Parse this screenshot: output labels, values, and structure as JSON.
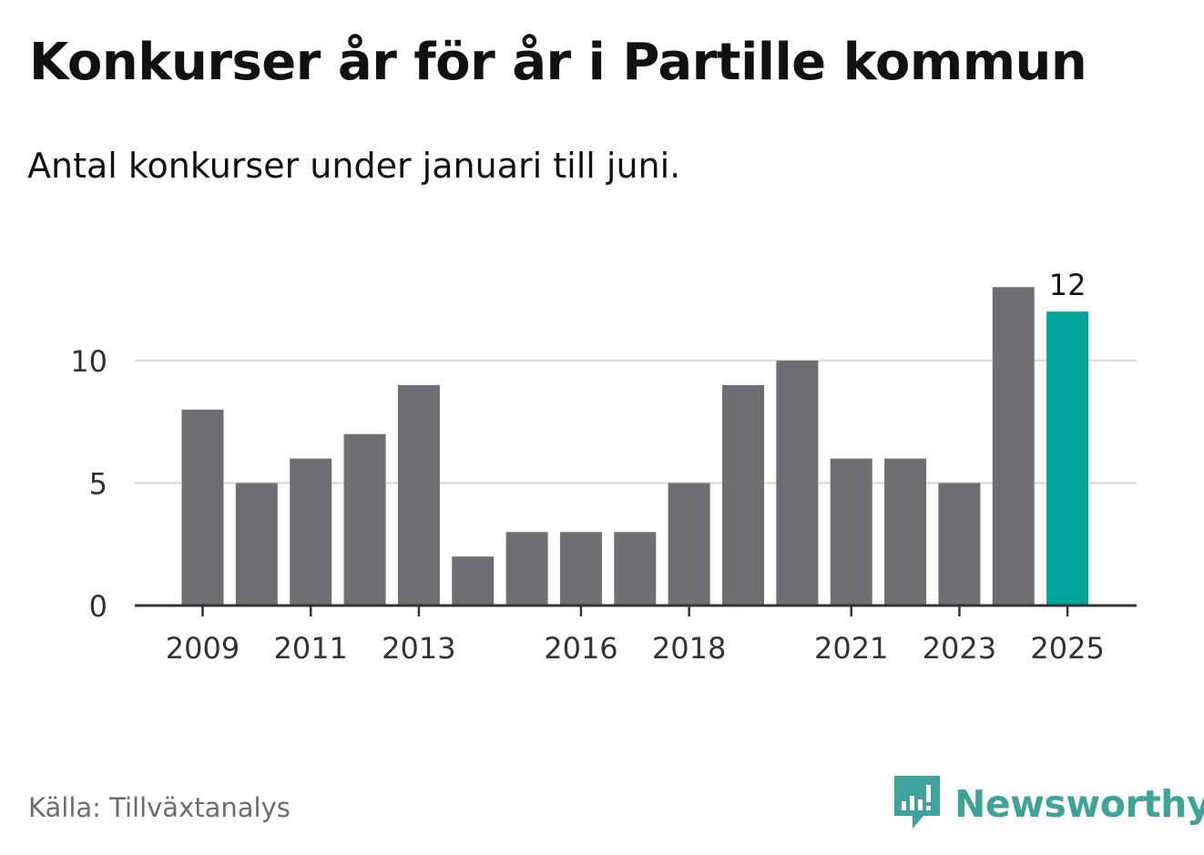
{
  "header": {
    "title": "Konkurser år för år i Partille kommun",
    "subtitle": "Antal konkurser under januari till juni."
  },
  "footer": {
    "source": "Källa: Tillväxtanalys",
    "brand": "Newsworthy",
    "brand_icon": "newsworthy-logo-icon"
  },
  "colors": {
    "bar": "#6f6e74",
    "highlight": "#00a499",
    "grid": "#dcdcdc",
    "axis": "#333333",
    "text": "#333333",
    "brand": "#3fa39b"
  },
  "chart_data": {
    "type": "bar",
    "categories": [
      "2009",
      "2010",
      "2011",
      "2012",
      "2013",
      "2014",
      "2015",
      "2016",
      "2017",
      "2018",
      "2019",
      "2020",
      "2021",
      "2022",
      "2023",
      "2024",
      "2025"
    ],
    "values": [
      8,
      5,
      6,
      7,
      9,
      2,
      3,
      3,
      3,
      5,
      9,
      10,
      6,
      6,
      5,
      13,
      12
    ],
    "highlight_category": "2025",
    "data_labels": [
      {
        "category": "2025",
        "text": "12"
      }
    ],
    "x_tick_labels": [
      "2009",
      "2011",
      "2013",
      "2016",
      "2018",
      "2021",
      "2023",
      "2025"
    ],
    "y_ticks": [
      0,
      5,
      10
    ],
    "y_tick_labels": [
      "0",
      "5",
      "10"
    ],
    "ylim": [
      0,
      14
    ],
    "grid": true,
    "xlabel": "",
    "ylabel": ""
  }
}
